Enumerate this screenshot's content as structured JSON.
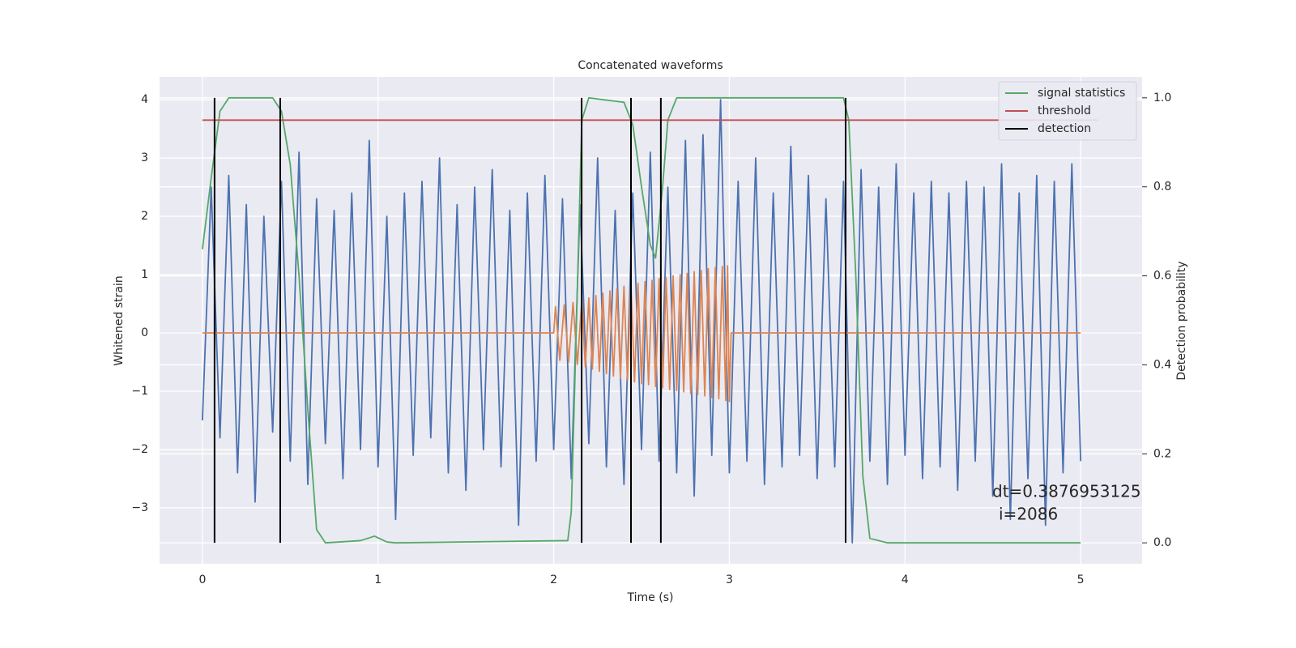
{
  "chart_data": {
    "type": "line",
    "title": "Concatenated waveforms",
    "xlabel": "Time (s)",
    "ylabel": "Whitened strain",
    "y2label": "Detection probability",
    "xlim": [
      -0.244,
      5.35
    ],
    "ylim": [
      -3.96,
      4.39
    ],
    "y2lim": [
      -0.047,
      1.047
    ],
    "xticks": [
      0,
      1,
      2,
      3,
      4,
      5
    ],
    "yticks": [
      {
        "value": -3,
        "label": "−3"
      },
      {
        "value": -2,
        "label": "−2"
      },
      {
        "value": -1,
        "label": "−1"
      },
      0,
      1,
      2,
      3,
      4
    ],
    "y2ticks": [
      {
        "value": 0,
        "label": "0.0"
      },
      0.2,
      0.4,
      0.6,
      0.8,
      {
        "value": 1,
        "label": "1.0"
      }
    ],
    "grid": true,
    "legend": "upper right",
    "annotations": [
      "dt=0.3876953125",
      "i=2086"
    ],
    "series": [
      {
        "color": "#4c72b0",
        "x": [
          0,
          0.05,
          0.1,
          0.15,
          0.2,
          0.25,
          0.3,
          0.35,
          0.4,
          0.45,
          0.5,
          0.55,
          0.6,
          0.65,
          0.7,
          0.75,
          0.8,
          0.85,
          0.9,
          0.95,
          1,
          1.05,
          1.1,
          1.15,
          1.2,
          1.25,
          1.3,
          1.35,
          1.4,
          1.45,
          1.5,
          1.55,
          1.6,
          1.65,
          1.7,
          1.75,
          1.8,
          1.85,
          1.9,
          1.95,
          2,
          2.05,
          2.1,
          2.15,
          2.2,
          2.25,
          2.3,
          2.35,
          2.4,
          2.45,
          2.5,
          2.55,
          2.6,
          2.65,
          2.7,
          2.75,
          2.8,
          2.85,
          2.9,
          2.95,
          3,
          3.05,
          3.1,
          3.15,
          3.2,
          3.25,
          3.3,
          3.35,
          3.4,
          3.45,
          3.5,
          3.55,
          3.6,
          3.65,
          3.7,
          3.75,
          3.8,
          3.85,
          3.9,
          3.95,
          4,
          4.05,
          4.1,
          4.15,
          4.2,
          4.25,
          4.3,
          4.35,
          4.4,
          4.45,
          4.5,
          4.55,
          4.6,
          4.65,
          4.7,
          4.75,
          4.8,
          4.85,
          4.9,
          4.95,
          5
        ],
        "values": [
          -1.5,
          2.5,
          -1.8,
          2.7,
          -2.4,
          2.2,
          -2.9,
          2.0,
          -1.7,
          2.6,
          -2.2,
          3.1,
          -2.6,
          2.3,
          -1.9,
          2.1,
          -2.5,
          2.4,
          -2.0,
          3.3,
          -2.3,
          2.0,
          -3.2,
          2.4,
          -2.1,
          2.6,
          -1.8,
          3.0,
          -2.4,
          2.2,
          -2.7,
          2.5,
          -2.0,
          2.8,
          -2.3,
          2.1,
          -3.3,
          2.4,
          -2.2,
          2.7,
          -2.0,
          2.3,
          -2.5,
          2.2,
          -1.9,
          3.0,
          -2.3,
          2.1,
          -2.6,
          2.4,
          -2.0,
          3.1,
          -2.2,
          2.5,
          -2.4,
          3.3,
          -2.8,
          3.4,
          -2.1,
          4.0,
          -2.4,
          2.6,
          -2.2,
          3.0,
          -2.6,
          2.4,
          -2.3,
          3.2,
          -2.1,
          2.7,
          -2.5,
          2.3,
          -2.3,
          2.6,
          -3.6,
          2.8,
          -2.2,
          2.5,
          -2.6,
          2.9,
          -2.1,
          2.4,
          -2.5,
          2.6,
          -2.3,
          2.4,
          -2.7,
          2.6,
          -2.2,
          2.5,
          -2.8,
          2.9,
          -3.2,
          2.4,
          -2.5,
          2.7,
          -3.3,
          2.6,
          -2.4,
          2.9,
          -2.2
        ]
      },
      {
        "color": "#dd8452",
        "x": [
          0,
          2,
          2.01,
          2.035,
          2.06,
          2.085,
          2.11,
          2.135,
          2.16,
          2.18,
          2.2,
          2.22,
          2.24,
          2.26,
          2.28,
          2.3,
          2.32,
          2.34,
          2.36,
          2.38,
          2.4,
          2.42,
          2.44,
          2.46,
          2.48,
          2.5,
          2.52,
          2.54,
          2.56,
          2.58,
          2.6,
          2.62,
          2.64,
          2.66,
          2.68,
          2.7,
          2.72,
          2.74,
          2.76,
          2.78,
          2.8,
          2.82,
          2.84,
          2.86,
          2.88,
          2.9,
          2.92,
          2.94,
          2.96,
          2.98,
          2.99,
          3,
          3.01,
          5
        ],
        "values": [
          0,
          0,
          0.45,
          -0.47,
          0.48,
          -0.5,
          0.52,
          -0.54,
          0.56,
          -0.58,
          0.6,
          -0.62,
          0.64,
          -0.66,
          0.68,
          -0.7,
          0.72,
          -0.74,
          0.76,
          -0.78,
          0.8,
          -0.81,
          0.83,
          -0.84,
          0.85,
          -0.87,
          0.88,
          -0.89,
          0.9,
          -0.92,
          0.93,
          -0.94,
          0.95,
          -0.97,
          0.98,
          -0.99,
          1.0,
          -1.01,
          1.02,
          -1.04,
          1.05,
          -1.06,
          1.07,
          -1.08,
          1.1,
          -1.11,
          1.12,
          -1.13,
          1.14,
          -1.16,
          1.15,
          -1.18,
          0,
          0
        ]
      },
      {
        "name": "signal statistics",
        "color": "#55a868",
        "axis": "y2",
        "x": [
          0,
          0.05,
          0.1,
          0.15,
          0.4,
          0.45,
          0.5,
          0.55,
          0.6,
          0.65,
          0.7,
          0.9,
          0.98,
          1.05,
          1.1,
          2.08,
          2.1,
          2.13,
          2.16,
          2.2,
          2.4,
          2.45,
          2.5,
          2.55,
          2.58,
          2.62,
          2.65,
          2.7,
          3.65,
          3.68,
          3.72,
          3.76,
          3.8,
          3.9,
          5
        ],
        "values": [
          0.66,
          0.82,
          0.97,
          1.0,
          1.0,
          0.97,
          0.85,
          0.6,
          0.3,
          0.03,
          0.0,
          0.005,
          0.015,
          0.002,
          0,
          0.005,
          0.07,
          0.5,
          0.95,
          1.0,
          0.99,
          0.94,
          0.8,
          0.67,
          0.64,
          0.8,
          0.95,
          1.0,
          1.0,
          0.95,
          0.6,
          0.15,
          0.01,
          0,
          0
        ]
      },
      {
        "name": "threshold",
        "color": "#c44e52",
        "axis": "y2",
        "x": [
          0,
          5.1
        ],
        "values": [
          0.95,
          0.95
        ]
      },
      {
        "name": "detection",
        "color": "#000000",
        "kind": "vline",
        "axis": "y2",
        "span": [
          0,
          1
        ],
        "x": [
          0.069,
          0.443,
          2.159,
          2.44,
          2.61,
          3.662
        ]
      }
    ]
  }
}
